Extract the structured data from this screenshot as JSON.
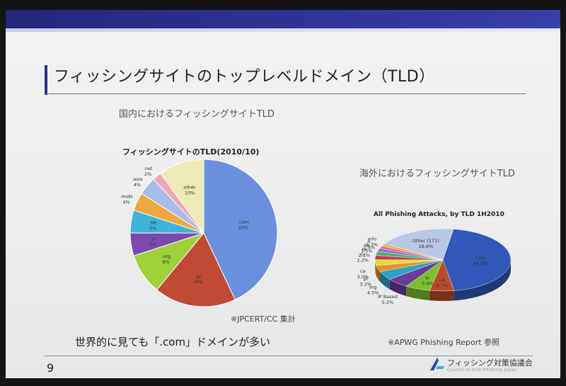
{
  "slide": {
    "title": "フィッシングサイトのトップレベルドメイン（TLD）",
    "subtitle_left": "国内におけるフィッシングサイトTLD",
    "subtitle_right": "海外におけるフィッシングサイトTLD",
    "source_left": "※JPCERT/CC 集計",
    "source_right": "※APWG Phishing Report 参照",
    "caption": "世界的に見ても「.com」ドメインが多い",
    "page_number": "9",
    "logo_text": "フィッシング対策協議会",
    "logo_sub": "Council of Anti-Phishing Japan"
  },
  "chart_data": [
    {
      "type": "pie",
      "title": "フィッシングサイトのTLD(2010/10)",
      "slices": [
        {
          "label": ".com",
          "value_label": "43%",
          "value": 43,
          "color": "#6a8fdd"
        },
        {
          "label": ".jp",
          "value_label": "18%",
          "value": 18,
          "color": "#c04a34"
        },
        {
          "label": ".org",
          "value_label": "9%",
          "value": 9,
          "color": "#9ed13a"
        },
        {
          "label": ".in",
          "value_label": "5%",
          "value": 5,
          "color": "#7a4ab0"
        },
        {
          "label": ".be",
          "value_label": "5%",
          "value": 5,
          "color": "#3fb2d9"
        },
        {
          "label": ".mobi",
          "value_label": "4%",
          "value": 4,
          "color": "#efa73f"
        },
        {
          "label": ".asia",
          "value_label": "4%",
          "value": 4,
          "color": "#a7bce9"
        },
        {
          "label": ".net",
          "value_label": "2%",
          "value": 2,
          "color": "#f0a7b5"
        },
        {
          "label": "other",
          "value_label": "10%",
          "value": 10,
          "color": "#eeeab6"
        }
      ]
    },
    {
      "type": "pie",
      "title": "All Phishing Attacks, by TLD 1H2010",
      "slices": [
        {
          "label": "com",
          "value_label": "44.4%",
          "value": 44.4,
          "color": "#2f58b8"
        },
        {
          "label": "uk",
          "value_label": "5.7%",
          "value": 5.7,
          "color": "#b94a2c"
        },
        {
          "label": "kr",
          "value_label": "5.9%",
          "value": 5.9,
          "color": "#7bbf2c"
        },
        {
          "label": "IP Based",
          "value_label": "5.2%",
          "value": 5.2,
          "color": "#6a3c98"
        },
        {
          "label": "org",
          "value_label": "4.5%",
          "value": 4.5,
          "color": "#2fa2c8"
        },
        {
          "label": "pl",
          "value_label": "3.2%",
          "value": 3.2,
          "color": "#ec8f2a"
        },
        {
          "label": "ca",
          "value_label": "3.0%",
          "value": 3.0,
          "color": "#d7e33b"
        },
        {
          "label": "ru",
          "value_label": "2.2%",
          "value": 2.2,
          "color": "#c83a4f"
        },
        {
          "label": "br",
          "value_label": "2.1%",
          "value": 2.1,
          "color": "#4ab06a"
        },
        {
          "label": "de",
          "value_label": "1.5%",
          "value": 1.5,
          "color": "#8f6cc4"
        },
        {
          "label": "fr",
          "value_label": "1.4%",
          "value": 1.4,
          "color": "#e06aa0"
        },
        {
          "label": "info",
          "value_label": "1.3%",
          "value": 1.3,
          "color": "#e8b64a"
        },
        {
          "label": "Other (171)",
          "value_label": "18.6%",
          "value": 18.6,
          "color": "#b8c8e4"
        }
      ]
    }
  ]
}
